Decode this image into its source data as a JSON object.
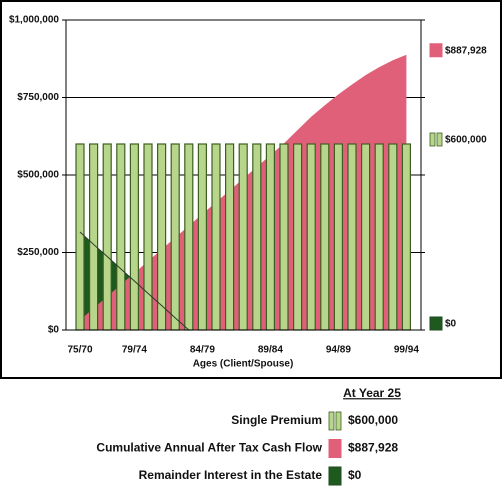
{
  "chart_data": {
    "type": "combo",
    "x_label": "Ages (Client/Spouse)",
    "legend_title": "At Year 25",
    "categories": [
      "75/70",
      null,
      null,
      null,
      "79/74",
      null,
      null,
      null,
      null,
      "84/79",
      null,
      null,
      null,
      null,
      "89/84",
      null,
      null,
      null,
      null,
      "94/89",
      null,
      null,
      null,
      null,
      "99/94"
    ],
    "ylim": [
      0,
      1000000
    ],
    "yticks": [
      {
        "value": 0,
        "label": "$0"
      },
      {
        "value": 250000,
        "label": "$250,000"
      },
      {
        "value": 500000,
        "label": "$500,000"
      },
      {
        "value": 750000,
        "label": "$750,000"
      },
      {
        "value": 1000000,
        "label": "$1,000,000"
      }
    ],
    "grid": true,
    "series": [
      {
        "name": "Single Premium",
        "type": "bar",
        "color": "#b7d68c",
        "edge": "#3e5e22",
        "values": [
          600000,
          600000,
          600000,
          600000,
          600000,
          600000,
          600000,
          600000,
          600000,
          600000,
          600000,
          600000,
          600000,
          600000,
          600000,
          600000,
          600000,
          600000,
          600000,
          600000,
          600000,
          600000,
          600000,
          600000,
          600000
        ],
        "value_labels": [
          null,
          null,
          null,
          null,
          null,
          null,
          null,
          null,
          null,
          null,
          null,
          null,
          null,
          null,
          null,
          null,
          null,
          null,
          null,
          null,
          null,
          null,
          null,
          null,
          "$600,000"
        ]
      },
      {
        "name": "Cumulative Annual After Tax Cash Flow",
        "type": "area",
        "color": "#e0607a",
        "edge": "#e0607a",
        "values": [
          32000,
          70000,
          108000,
          146000,
          184000,
          222000,
          260000,
          298000,
          336000,
          374000,
          412000,
          450000,
          488000,
          526000,
          564000,
          602000,
          645000,
          688000,
          725000,
          760000,
          792000,
          822000,
          848000,
          870000,
          887928
        ],
        "value_labels": [
          null,
          null,
          null,
          null,
          null,
          null,
          null,
          null,
          null,
          null,
          null,
          null,
          null,
          null,
          null,
          null,
          null,
          null,
          null,
          null,
          null,
          null,
          null,
          null,
          "$887,928"
        ]
      },
      {
        "name": "Remainder Interest in the Estate",
        "type": "area",
        "color": "#1e5a1e",
        "edge": "#1e4a1e",
        "values": [
          316000,
          276000,
          237000,
          197000,
          158000,
          118000,
          79000,
          39000,
          0,
          0,
          0,
          0,
          0,
          0,
          0,
          0,
          0,
          0,
          0,
          0,
          0,
          0,
          0,
          0,
          0
        ],
        "value_labels": [
          null,
          null,
          null,
          null,
          null,
          null,
          null,
          null,
          null,
          null,
          null,
          null,
          null,
          null,
          null,
          null,
          null,
          null,
          null,
          null,
          null,
          null,
          null,
          null,
          "$0"
        ]
      }
    ]
  }
}
